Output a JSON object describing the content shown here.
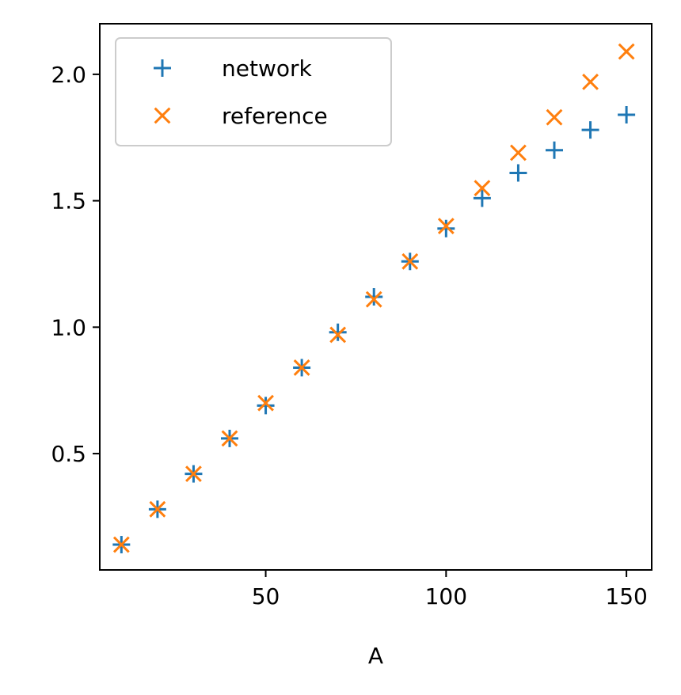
{
  "chart_data": {
    "type": "scatter",
    "title": "",
    "xlabel": "A",
    "ylabel": "",
    "xlim": [
      4,
      157
    ],
    "ylim": [
      0.04,
      2.2
    ],
    "xticks": [
      50,
      100,
      150
    ],
    "yticks": [
      0.5,
      1.0,
      1.5,
      2.0
    ],
    "xtick_labels": [
      "50",
      "100",
      "150"
    ],
    "ytick_labels": [
      "0.5",
      "1.0",
      "1.5",
      "2.0"
    ],
    "grid": false,
    "legend_position": "top-left",
    "x": [
      10,
      20,
      30,
      40,
      50,
      60,
      70,
      80,
      90,
      100,
      110,
      120,
      130,
      140,
      150
    ],
    "series": [
      {
        "name": "network",
        "marker": "plus",
        "color": "#1f77b4",
        "values": [
          0.14,
          0.28,
          0.42,
          0.56,
          0.69,
          0.84,
          0.98,
          1.12,
          1.26,
          1.39,
          1.51,
          1.61,
          1.7,
          1.78,
          1.84
        ]
      },
      {
        "name": "reference",
        "marker": "x",
        "color": "#ff7f0e",
        "values": [
          0.14,
          0.28,
          0.42,
          0.56,
          0.7,
          0.84,
          0.97,
          1.11,
          1.26,
          1.4,
          1.55,
          1.69,
          1.83,
          1.97,
          2.09
        ]
      }
    ]
  }
}
